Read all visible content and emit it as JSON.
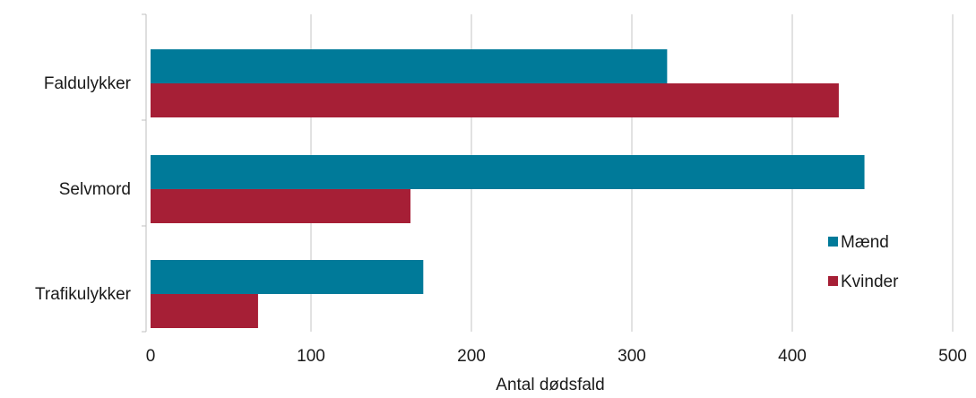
{
  "chart_data": {
    "type": "bar",
    "orientation": "horizontal",
    "categories": [
      "Faldulykker",
      "Selvmord",
      "Trafikulykker"
    ],
    "series": [
      {
        "name": "Mænd",
        "color": "#007a99",
        "values": [
          322,
          445,
          170
        ]
      },
      {
        "name": "Kvinder",
        "color": "#a61f36",
        "values": [
          429,
          162,
          67
        ]
      }
    ],
    "xlabel": "Antal dødsfald",
    "ylabel": "",
    "xlim": [
      0,
      500
    ],
    "xticks": [
      0,
      100,
      200,
      300,
      400,
      500
    ],
    "grid": "vertical",
    "legend_position": "right"
  }
}
